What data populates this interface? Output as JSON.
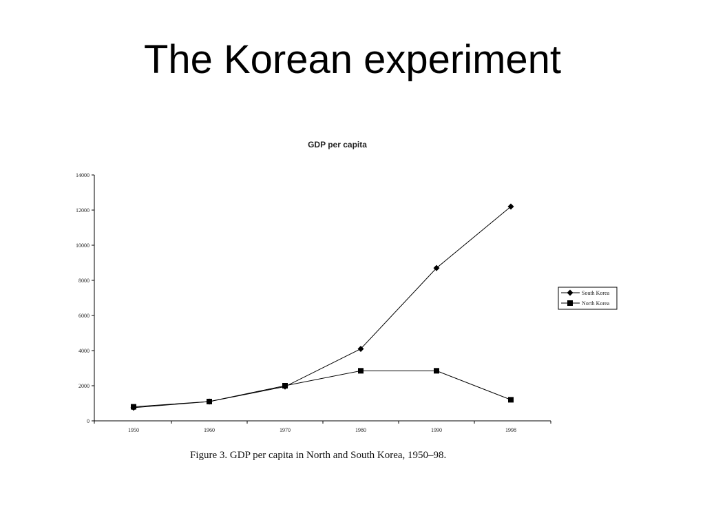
{
  "slide": {
    "title": "The Korean experiment",
    "caption": "Figure 3.  GDP per capita in North and South Korea, 1950–98."
  },
  "chart_data": {
    "type": "line",
    "title": "GDP per capita",
    "xlabel": "",
    "ylabel": "",
    "categories": [
      "1950",
      "1960",
      "1970",
      "1980",
      "1990",
      "1998"
    ],
    "ylim": [
      0,
      14000
    ],
    "yticks": [
      0,
      2000,
      4000,
      6000,
      8000,
      10000,
      12000,
      14000
    ],
    "legend_position": "right",
    "grid": false,
    "series": [
      {
        "name": "South Korea",
        "marker": "diamond",
        "color": "#000000",
        "values": [
          750,
          1100,
          1950,
          4100,
          8700,
          12200
        ]
      },
      {
        "name": "North Korea",
        "marker": "square",
        "color": "#000000",
        "values": [
          800,
          1100,
          2000,
          2850,
          2850,
          1200
        ]
      }
    ]
  }
}
